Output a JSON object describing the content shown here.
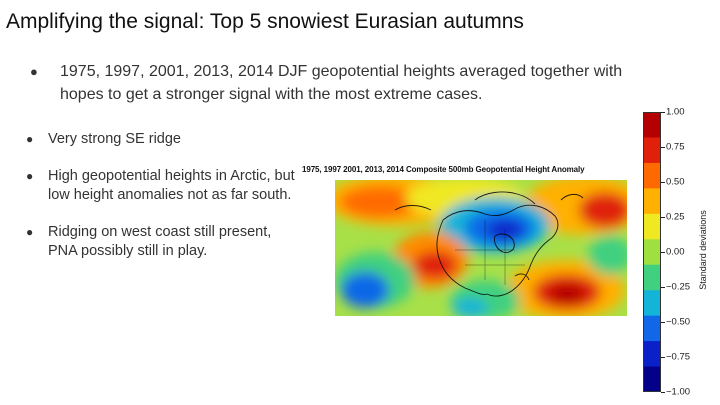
{
  "slide": {
    "title": "Amplifying the signal: Top 5 snowiest Eurasian autumns",
    "intro": "1975, 1997, 2001, 2013, 2014 DJF geopotential heights averaged together with hopes to get a stronger signal with the most extreme cases.",
    "bullets": [
      "Very strong SE ridge",
      "High geopotential heights in Arctic, but low height anomalies not as far south.",
      "Ridging on west coast still present, PNA possibly still in play."
    ],
    "bullet_symbol": "●"
  },
  "figure": {
    "title": "1975, 1997 2001, 2013, 2014 Composite 500mb Geopotential Height Anomaly",
    "colorbar_label": "Standard deviations",
    "colorbar_ticks": [
      "1.00",
      "0.75",
      "0.50",
      "0.25",
      "0.00",
      "−0.25",
      "−0.50",
      "−0.75",
      "−1.00"
    ],
    "colorbar_colors": [
      "#b40000",
      "#e0200a",
      "#ff6a00",
      "#ffb000",
      "#f0e820",
      "#9ee040",
      "#40d080",
      "#14b4d8",
      "#1068e8",
      "#0a20c8",
      "#05008a"
    ]
  }
}
